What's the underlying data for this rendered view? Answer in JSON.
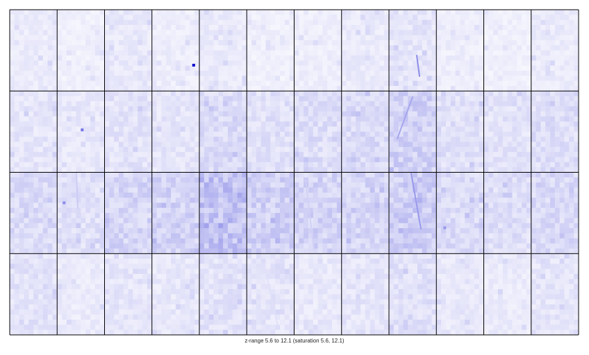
{
  "chart_data": {
    "type": "heatmap",
    "title": "",
    "xlabel": "",
    "ylabel": "",
    "panel_grid": {
      "rows": 4,
      "cols": 12
    },
    "z_range": [
      5.6,
      12.1
    ],
    "saturation": [
      5.6,
      12.1
    ],
    "colormap": {
      "low": "#ffffff",
      "high": "#0000cc"
    },
    "panel_mean_intensity": [
      [
        0.08,
        0.06,
        0.09,
        0.07,
        0.08,
        0.06,
        0.07,
        0.08,
        0.1,
        0.07,
        0.06,
        0.08
      ],
      [
        0.1,
        0.09,
        0.11,
        0.1,
        0.14,
        0.12,
        0.13,
        0.14,
        0.18,
        0.12,
        0.11,
        0.13
      ],
      [
        0.14,
        0.12,
        0.16,
        0.17,
        0.24,
        0.18,
        0.17,
        0.16,
        0.19,
        0.14,
        0.13,
        0.15
      ],
      [
        0.11,
        0.08,
        0.1,
        0.09,
        0.11,
        0.1,
        0.09,
        0.1,
        0.12,
        0.09,
        0.08,
        0.1
      ]
    ],
    "hot_spots": [
      {
        "row": 0,
        "col": 3,
        "intensity": 1.0
      },
      {
        "row": 1,
        "col": 1,
        "intensity": 0.55
      },
      {
        "row": 2,
        "col": 1,
        "intensity": 0.45
      },
      {
        "row": 2,
        "col": 9,
        "intensity": 0.4
      }
    ]
  },
  "caption": "z-range 5.6 to 12.1 (saturation 5.6, 12.1)"
}
